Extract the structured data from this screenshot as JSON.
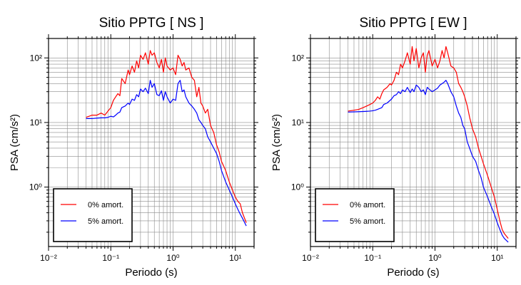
{
  "chart_data": [
    {
      "type": "line",
      "title": "Sitio PPTG [ NS ]",
      "xlabel": "Periodo (s)",
      "ylabel": "PSA (cm/s²)",
      "xscale": "log",
      "yscale": "log",
      "xlim": [
        0.01,
        20
      ],
      "ylim": [
        0.12,
        200
      ],
      "xticks": [
        0.01,
        0.1,
        1,
        10
      ],
      "xtick_labels": [
        "10⁻²",
        "10⁻¹",
        "10⁰",
        "10¹"
      ],
      "yticks": [
        1,
        10,
        100
      ],
      "ytick_labels": [
        "10⁰",
        "10¹",
        "10²"
      ],
      "grid": true,
      "legend_position": "bottom-left",
      "series": [
        {
          "name": "0% amort.",
          "color": "#ff0000",
          "x": [
            0.04,
            0.05,
            0.06,
            0.07,
            0.08,
            0.09,
            0.1,
            0.11,
            0.12,
            0.13,
            0.14,
            0.15,
            0.17,
            0.19,
            0.2,
            0.22,
            0.24,
            0.26,
            0.28,
            0.3,
            0.33,
            0.36,
            0.4,
            0.43,
            0.46,
            0.5,
            0.55,
            0.6,
            0.65,
            0.7,
            0.75,
            0.8,
            0.9,
            1.0,
            1.1,
            1.2,
            1.3,
            1.4,
            1.5,
            1.6,
            1.8,
            2.0,
            2.2,
            2.4,
            2.6,
            2.8,
            3.0,
            3.3,
            3.6,
            4.0,
            4.5,
            5.0,
            5.5,
            6.0,
            7.0,
            8.0,
            9.0,
            10.0,
            11.0,
            12.0,
            13.0,
            15.0
          ],
          "y": [
            12,
            13,
            13,
            14,
            13,
            15,
            17,
            22,
            25,
            28,
            26,
            48,
            40,
            65,
            55,
            75,
            60,
            90,
            70,
            110,
            95,
            120,
            80,
            130,
            110,
            120,
            85,
            70,
            95,
            60,
            100,
            75,
            65,
            70,
            55,
            110,
            95,
            75,
            85,
            65,
            70,
            50,
            45,
            25,
            35,
            20,
            18,
            14,
            16,
            9,
            7,
            4.5,
            3.5,
            2.5,
            1.8,
            1.2,
            0.9,
            0.7,
            0.6,
            0.55,
            0.4,
            0.28
          ]
        },
        {
          "name": "5% amort.",
          "color": "#0000ff",
          "x": [
            0.04,
            0.05,
            0.06,
            0.07,
            0.08,
            0.09,
            0.1,
            0.11,
            0.12,
            0.13,
            0.14,
            0.15,
            0.17,
            0.19,
            0.2,
            0.22,
            0.24,
            0.26,
            0.28,
            0.3,
            0.33,
            0.36,
            0.4,
            0.43,
            0.46,
            0.5,
            0.55,
            0.6,
            0.65,
            0.7,
            0.75,
            0.8,
            0.9,
            1.0,
            1.1,
            1.2,
            1.3,
            1.4,
            1.5,
            1.6,
            1.8,
            2.0,
            2.2,
            2.4,
            2.6,
            2.8,
            3.0,
            3.3,
            3.6,
            4.0,
            4.5,
            5.0,
            5.5,
            6.0,
            7.0,
            8.0,
            9.0,
            10.0,
            11.0,
            12.0,
            13.0,
            15.0
          ],
          "y": [
            11.5,
            11.5,
            11.7,
            11.8,
            11.8,
            12,
            12.5,
            12.2,
            13,
            14,
            14.5,
            17,
            18,
            20,
            19,
            23,
            22,
            27,
            25,
            33,
            30,
            34,
            28,
            45,
            35,
            40,
            27,
            26,
            31,
            22,
            30,
            25,
            20,
            23,
            22,
            40,
            45,
            30,
            32,
            25,
            20,
            18,
            16,
            14,
            11,
            10,
            9,
            8,
            6,
            5,
            4,
            3.3,
            2.5,
            1.8,
            1.2,
            0.9,
            0.7,
            0.55,
            0.45,
            0.38,
            0.33,
            0.25
          ]
        }
      ]
    },
    {
      "type": "line",
      "title": "Sitio PPTG [ EW ]",
      "xlabel": "Periodo (s)",
      "ylabel": "PSA (cm/s²)",
      "xscale": "log",
      "yscale": "log",
      "xlim": [
        0.01,
        20
      ],
      "ylim": [
        0.12,
        200
      ],
      "xticks": [
        0.01,
        0.1,
        1,
        10
      ],
      "xtick_labels": [
        "10⁻²",
        "10⁻¹",
        "10⁰",
        "10¹"
      ],
      "yticks": [
        1,
        10,
        100
      ],
      "ytick_labels": [
        "10⁰",
        "10¹",
        "10²"
      ],
      "grid": true,
      "legend_position": "bottom-left",
      "series": [
        {
          "name": "0% amort.",
          "color": "#ff0000",
          "x": [
            0.04,
            0.05,
            0.06,
            0.07,
            0.08,
            0.09,
            0.1,
            0.11,
            0.12,
            0.13,
            0.14,
            0.15,
            0.17,
            0.19,
            0.2,
            0.22,
            0.24,
            0.26,
            0.28,
            0.3,
            0.33,
            0.36,
            0.4,
            0.43,
            0.46,
            0.5,
            0.55,
            0.6,
            0.65,
            0.7,
            0.75,
            0.8,
            0.9,
            1.0,
            1.1,
            1.2,
            1.3,
            1.4,
            1.5,
            1.6,
            1.8,
            2.0,
            2.2,
            2.4,
            2.6,
            2.8,
            3.0,
            3.3,
            3.6,
            4.0,
            4.5,
            5.0,
            5.5,
            6.0,
            7.0,
            8.0,
            9.0,
            10.0,
            11.0,
            12.0,
            13.0,
            15.0
          ],
          "y": [
            15,
            15.5,
            16,
            17,
            18,
            19,
            20,
            22,
            25,
            23,
            28,
            32,
            35,
            40,
            38,
            45,
            60,
            55,
            80,
            70,
            90,
            120,
            80,
            150,
            90,
            140,
            70,
            100,
            120,
            60,
            110,
            130,
            75,
            95,
            70,
            90,
            130,
            100,
            150,
            120,
            75,
            70,
            60,
            40,
            35,
            30,
            25,
            18,
            12,
            8,
            6,
            4,
            3,
            2.3,
            1.5,
            1,
            0.7,
            0.45,
            0.3,
            0.22,
            0.19,
            0.16
          ]
        },
        {
          "name": "5% amort.",
          "color": "#0000ff",
          "x": [
            0.04,
            0.05,
            0.06,
            0.07,
            0.08,
            0.09,
            0.1,
            0.11,
            0.12,
            0.13,
            0.14,
            0.15,
            0.17,
            0.19,
            0.2,
            0.22,
            0.24,
            0.26,
            0.28,
            0.3,
            0.33,
            0.36,
            0.4,
            0.43,
            0.46,
            0.5,
            0.55,
            0.6,
            0.65,
            0.7,
            0.75,
            0.8,
            0.9,
            1.0,
            1.1,
            1.2,
            1.3,
            1.4,
            1.5,
            1.6,
            1.8,
            2.0,
            2.2,
            2.4,
            2.6,
            2.8,
            3.0,
            3.3,
            3.6,
            4.0,
            4.5,
            5.0,
            5.5,
            6.0,
            7.0,
            8.0,
            9.0,
            10.0,
            11.0,
            12.0,
            13.0,
            15.0
          ],
          "y": [
            14.5,
            14.6,
            14.7,
            14.8,
            14.9,
            15,
            15.2,
            15.5,
            16,
            16.5,
            17,
            19,
            20,
            22,
            23,
            26,
            27,
            30,
            28,
            32,
            30,
            35,
            29,
            33,
            30,
            38,
            35,
            30,
            32,
            27,
            35,
            33,
            30,
            32,
            34,
            38,
            40,
            42,
            45,
            40,
            30,
            25,
            18,
            14,
            12,
            9,
            8,
            5,
            4,
            3,
            2.5,
            1.8,
            1.4,
            1,
            0.7,
            0.5,
            0.38,
            0.28,
            0.22,
            0.18,
            0.16,
            0.14
          ]
        }
      ]
    }
  ]
}
